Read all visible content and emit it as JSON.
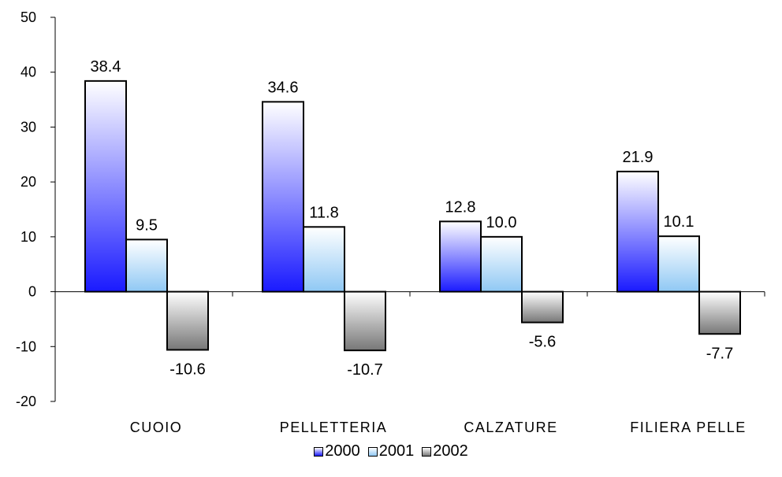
{
  "chart_data": {
    "type": "bar",
    "categories": [
      "CUOIO",
      "PELLETTERIA",
      "CALZATURE",
      "FILIERA PELLE"
    ],
    "series": [
      {
        "name": "2000",
        "values": [
          38.4,
          34.6,
          12.8,
          21.9
        ],
        "labels": [
          "38.4",
          "34.6",
          "12.8",
          "21.9"
        ],
        "color_top": "#ffffff",
        "color_bottom": "#1a1aff"
      },
      {
        "name": "2001",
        "values": [
          9.5,
          11.8,
          10.0,
          10.1
        ],
        "labels": [
          "9.5",
          "11.8",
          "10.0",
          "10.1"
        ],
        "color_top": "#ffffff",
        "color_bottom": "#8fc8f4"
      },
      {
        "name": "2002",
        "values": [
          -10.6,
          -10.7,
          -5.6,
          -7.7
        ],
        "labels": [
          "-10.6",
          "-10.7",
          "-5.6",
          "-7.7"
        ],
        "color_top": "#ffffff",
        "color_bottom": "#777777"
      }
    ],
    "title": "",
    "xlabel": "",
    "ylabel": "",
    "ylim": [
      -20,
      50
    ],
    "yticks": [
      -20,
      -10,
      0,
      10,
      20,
      30,
      40,
      50
    ],
    "ytick_labels": [
      "-20",
      "-10",
      "0",
      "10",
      "20",
      "30",
      "40",
      "50"
    ],
    "grid": false,
    "legend_position": "bottom"
  }
}
